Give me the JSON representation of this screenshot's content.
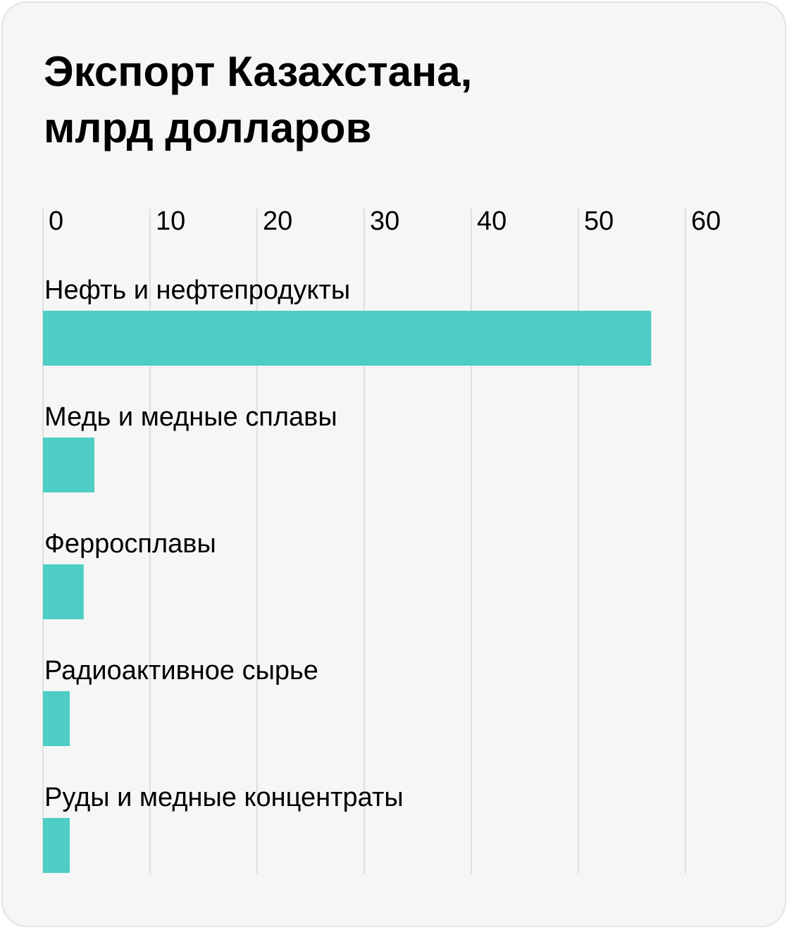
{
  "chart_data": {
    "type": "bar",
    "orientation": "horizontal",
    "title": "Экспорт Казахстана,\nмлрд долларов",
    "categories": [
      "Нефть и нефтепродукты",
      "Медь и медные сплавы",
      "Ферросплавы",
      "Радиоактивное сырье",
      "Руды и медные концентраты"
    ],
    "values": [
      56.8,
      4.8,
      3.8,
      2.5,
      2.5
    ],
    "xlim": [
      0,
      60
    ],
    "ticks": [
      0,
      10,
      20,
      30,
      40,
      50,
      60
    ],
    "tick_labels": [
      "0",
      "10",
      "20",
      "30",
      "40",
      "50",
      "60"
    ],
    "grid": true,
    "colors": {
      "bar": "#4ecdc4",
      "grid": "#d6d6d6",
      "background": "#f6f6f6"
    }
  }
}
